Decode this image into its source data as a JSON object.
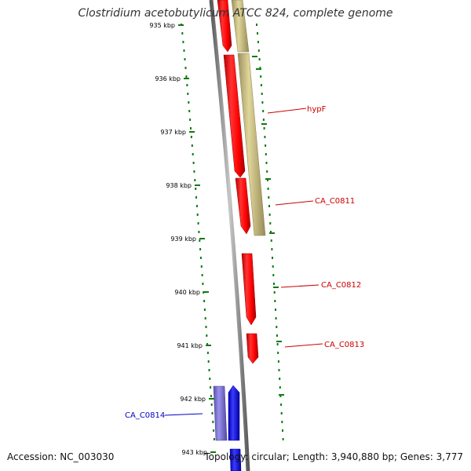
{
  "title": "Clostridium acetobutylicum ATCC 824, complete genome",
  "footer": {
    "accession": "Accession: NC_003030",
    "stats": "Topology: circular; Length: 3,940,880 bp; Genes: 3,777"
  },
  "colors": {
    "forward_cds": "#ff0000",
    "reverse_cds": "#c3b878",
    "forward_rna": "#0000ff",
    "reverse_rna": "#6e63c9",
    "backbone": "#8a8a8a",
    "tick": "#117a11",
    "label_red": "#cc0000",
    "label_blue": "#0000cc"
  },
  "ticks": [
    "935 kbp",
    "936 kbp",
    "937 kbp",
    "938 kbp",
    "939 kbp",
    "940 kbp",
    "941 kbp",
    "942 kbp",
    "943 kbp"
  ],
  "gene_labels": [
    {
      "name": "hypF",
      "color": "red"
    },
    {
      "name": "CA_C0811",
      "color": "red"
    },
    {
      "name": "CA_C0812",
      "color": "red"
    },
    {
      "name": "CA_C0813",
      "color": "red"
    },
    {
      "name": "CA_C0814",
      "color": "blue"
    }
  ]
}
